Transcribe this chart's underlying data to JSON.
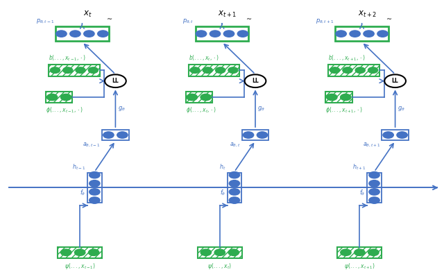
{
  "blue": "#4472C4",
  "green": "#2EAC4F",
  "node_blue": "#4472C4",
  "node_green": "#2EAC4F",
  "bg": "#FFFFFF",
  "columns": [
    0.185,
    0.5,
    0.815
  ],
  "figsize": [
    6.4,
    3.89
  ]
}
